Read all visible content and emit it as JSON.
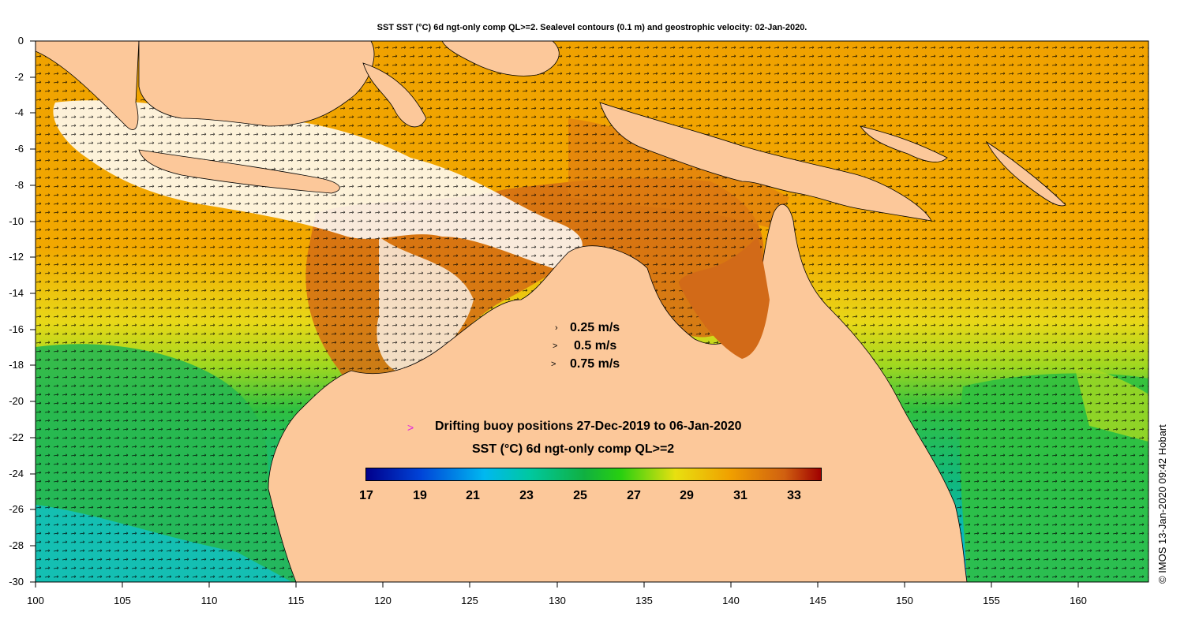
{
  "title": "SST SST (°C) 6d ngt-only comp QL>=2. Sealevel contours (0.1 m) and geostrophic velocity: 02-Jan-2020.",
  "y_ticks": [
    "0",
    "-2",
    "-4",
    "-6",
    "-8",
    "-10",
    "-12",
    "-14",
    "-16",
    "-18",
    "-20",
    "-22",
    "-24",
    "-26",
    "-28",
    "-30"
  ],
  "x_ticks": [
    "100",
    "105",
    "110",
    "115",
    "120",
    "125",
    "130",
    "135",
    "140",
    "145",
    "150",
    "155",
    "160"
  ],
  "velocity_legend": [
    "0.25 m/s",
    "0.5 m/s",
    "0.75 m/s"
  ],
  "buoy_legend": "Drifting buoy positions 27-Dec-2019 to 06-Jan-2020",
  "colorbar": {
    "label": "SST (°C) 6d ngt-only comp QL>=2",
    "ticks": [
      "17",
      "19",
      "21",
      "23",
      "25",
      "27",
      "29",
      "31",
      "33"
    ],
    "range": [
      17,
      34
    ],
    "colors": [
      "#00008c",
      "#0044d8",
      "#00b8f0",
      "#00c8a0",
      "#10b040",
      "#28d010",
      "#e8e010",
      "#f0a000",
      "#d06010",
      "#a00000"
    ]
  },
  "copyright": "© IMOS 13-Jan-2020 09:42 Hobart",
  "colors": {
    "land": "#fcc89a",
    "missing": "#ffffff",
    "sst_warm": "#f0a000",
    "sst_hot": "#d06a10",
    "sst_mid": "#e8e020",
    "sst_green": "#30c040",
    "sst_cool": "#00c8c0",
    "buoy": "#e020e0"
  }
}
